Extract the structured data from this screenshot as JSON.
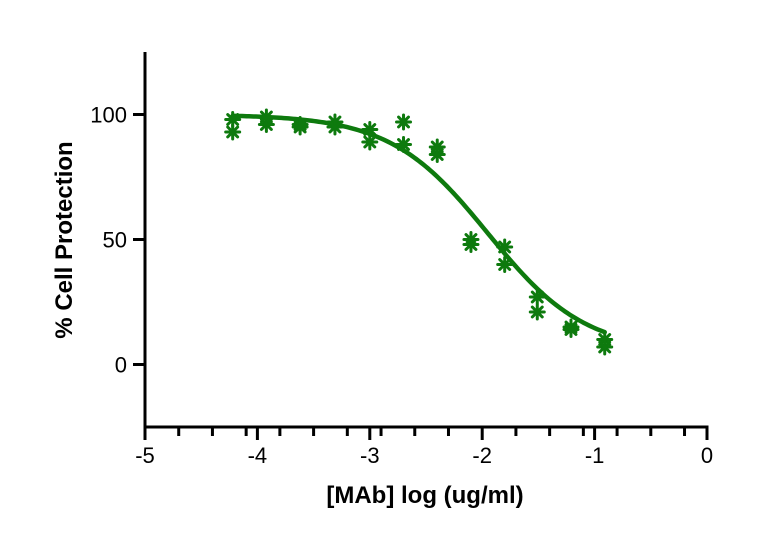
{
  "chart_data": {
    "type": "scatter",
    "xlabel": "[MAb] log (ug/ml)",
    "ylabel": "% Cell Protection",
    "xlim": [
      -5,
      0
    ],
    "ylim": [
      -25,
      125
    ],
    "x_ticks": [
      -5,
      -4,
      -3,
      -2,
      -1,
      0
    ],
    "x_tick_labels": [
      "-5",
      "-4",
      "-3",
      "-2",
      "-1",
      "0"
    ],
    "x_minor_ticks": [
      -4.7,
      -4.4,
      -4.1,
      -3.8,
      -3.5,
      -3.2,
      -2.9,
      -2.6,
      -2.3,
      -1.7,
      -1.4,
      -1.1,
      -0.8,
      -0.5,
      -0.2
    ],
    "y_ticks": [
      0,
      50,
      100
    ],
    "y_tick_labels": [
      "0",
      "50",
      "100"
    ],
    "grid": false,
    "series": [
      {
        "color": "#0e7a0e",
        "marker": "asterisk",
        "points": [
          {
            "x": -4.22,
            "y": 98
          },
          {
            "x": -4.22,
            "y": 93
          },
          {
            "x": -3.92,
            "y": 99
          },
          {
            "x": -3.92,
            "y": 96
          },
          {
            "x": -3.62,
            "y": 96
          },
          {
            "x": -3.62,
            "y": 95
          },
          {
            "x": -3.31,
            "y": 97
          },
          {
            "x": -3.31,
            "y": 95
          },
          {
            "x": -3.0,
            "y": 94
          },
          {
            "x": -3.0,
            "y": 89
          },
          {
            "x": -2.7,
            "y": 97
          },
          {
            "x": -2.7,
            "y": 88
          },
          {
            "x": -2.4,
            "y": 87
          },
          {
            "x": -2.4,
            "y": 84
          },
          {
            "x": -2.1,
            "y": 50
          },
          {
            "x": -2.1,
            "y": 48
          },
          {
            "x": -1.8,
            "y": 47
          },
          {
            "x": -1.8,
            "y": 40
          },
          {
            "x": -1.51,
            "y": 27
          },
          {
            "x": -1.51,
            "y": 21
          },
          {
            "x": -1.21,
            "y": 15
          },
          {
            "x": -1.21,
            "y": 14
          },
          {
            "x": -0.91,
            "y": 10
          },
          {
            "x": -0.91,
            "y": 7
          }
        ],
        "fit": {
          "model": "sigmoidal",
          "top": 100,
          "bottom": 5,
          "log_ec50": -1.95,
          "hill_slope": -1.0,
          "x_range": [
            -4.22,
            -0.91
          ]
        }
      }
    ]
  }
}
